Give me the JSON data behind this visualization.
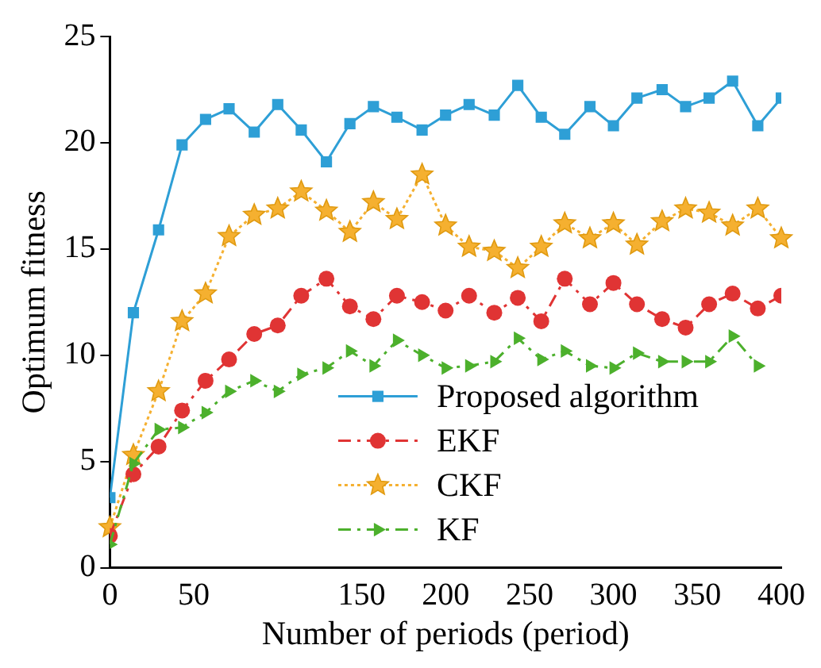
{
  "chart_data": {
    "type": "line",
    "xlabel": "Number of periods (period)",
    "ylabel": "Optimum fitness",
    "xlim": [
      0,
      400
    ],
    "xticks": [
      0,
      50,
      150,
      200,
      250,
      300,
      350,
      400
    ],
    "ylim": [
      0,
      25
    ],
    "yticks": [
      0,
      5,
      10,
      15,
      20,
      25
    ],
    "grid": false,
    "legend": "bottom right",
    "series": [
      {
        "name": "Proposed algorithm",
        "color": "#2e9fd6",
        "marker": "square",
        "line_style": "solid",
        "x": [
          0,
          14,
          29,
          43,
          57,
          71,
          86,
          100,
          114,
          129,
          143,
          157,
          171,
          186,
          200,
          214,
          229,
          243,
          257,
          271,
          286,
          300,
          314,
          329,
          343,
          357,
          371,
          386,
          400
        ],
        "values": [
          3.3,
          12.0,
          15.9,
          19.9,
          21.1,
          21.6,
          20.5,
          21.8,
          20.6,
          19.1,
          20.9,
          21.7,
          21.2,
          20.6,
          21.3,
          21.8,
          21.3,
          22.7,
          21.2,
          20.4,
          21.7,
          20.8,
          22.1,
          22.5,
          21.7,
          22.1,
          22.9,
          20.8,
          22.1
        ]
      },
      {
        "name": "EKF",
        "color": "#e03434",
        "marker": "circle",
        "line_style": "dashed",
        "x": [
          0,
          14,
          29,
          43,
          57,
          71,
          86,
          100,
          114,
          129,
          143,
          157,
          171,
          186,
          200,
          214,
          229,
          243,
          257,
          271,
          286,
          300,
          314,
          329,
          343,
          357,
          371,
          386,
          400
        ],
        "values": [
          1.5,
          4.4,
          5.7,
          7.4,
          8.8,
          9.8,
          11.0,
          11.4,
          12.8,
          13.6,
          12.3,
          11.7,
          12.8,
          12.5,
          12.1,
          12.8,
          12.0,
          12.7,
          11.6,
          13.6,
          12.4,
          13.4,
          12.4,
          11.7,
          11.3,
          12.4,
          12.9,
          12.2,
          12.8
        ]
      },
      {
        "name": "CKF",
        "color": "#f5b030",
        "marker": "star",
        "line_style": "dotted",
        "x": [
          0,
          14,
          29,
          43,
          57,
          71,
          86,
          100,
          114,
          129,
          143,
          157,
          171,
          186,
          200,
          214,
          229,
          243,
          257,
          271,
          286,
          300,
          314,
          329,
          343,
          357,
          371,
          386,
          400
        ],
        "values": [
          1.9,
          5.3,
          8.3,
          11.6,
          12.9,
          15.6,
          16.6,
          16.9,
          17.7,
          16.8,
          15.8,
          17.2,
          16.4,
          18.5,
          16.1,
          15.1,
          14.9,
          14.1,
          15.1,
          16.2,
          15.5,
          16.2,
          15.2,
          16.3,
          16.9,
          16.7,
          16.1,
          16.9,
          15.5
        ]
      },
      {
        "name": "KF",
        "color": "#4cb02c",
        "marker": "triangle",
        "line_style": "dashed",
        "x": [
          0,
          14,
          29,
          43,
          57,
          71,
          86,
          100,
          114,
          129,
          143,
          157,
          171,
          186,
          200,
          214,
          229,
          243,
          257,
          271,
          286,
          300,
          314,
          329,
          343,
          357,
          371,
          386
        ],
        "values": [
          1.1,
          4.9,
          6.5,
          6.6,
          7.3,
          8.3,
          8.8,
          8.3,
          9.1,
          9.4,
          10.2,
          9.5,
          10.7,
          10.0,
          9.4,
          9.5,
          9.7,
          10.8,
          9.8,
          10.2,
          9.5,
          9.4,
          10.1,
          9.7,
          9.7,
          9.7,
          10.9,
          9.5
        ]
      }
    ]
  }
}
